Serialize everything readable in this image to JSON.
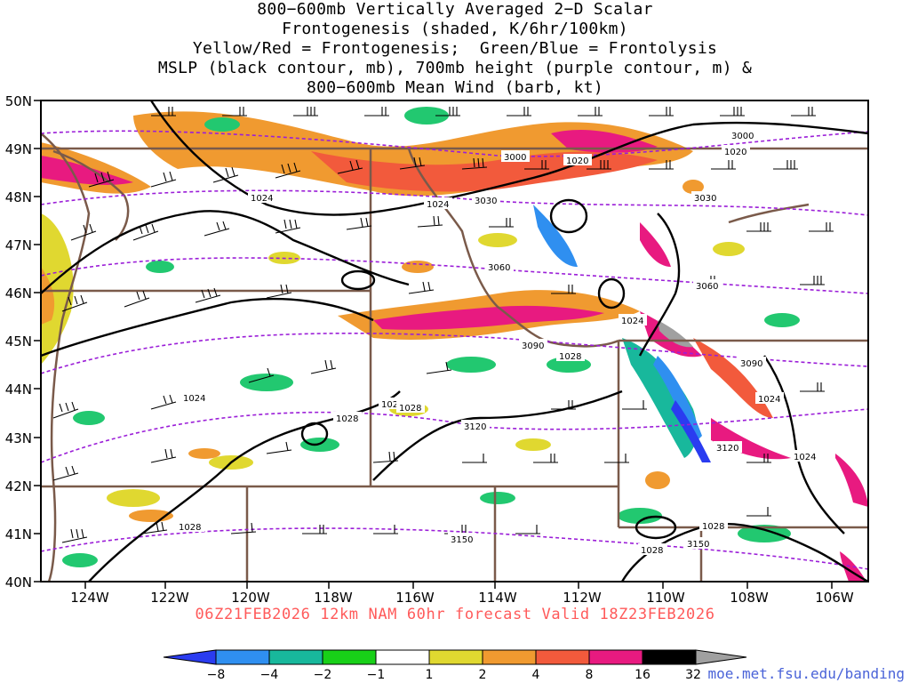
{
  "title_lines": [
    "800−600mb Vertically Averaged 2−D Scalar",
    "Frontogenesis (shaded, K/6hr/100km)",
    "Yellow/Red = Frontogenesis;  Green/Blue = Frontolysis",
    "MSLP (black contour, mb), 700mb height (purple contour, m) &",
    "800−600mb Mean Wind (barb, kt)"
  ],
  "valid_line": "06Z21FEB2026 12km NAM 60hr forecast Valid 18Z23FEB2026",
  "credit": "moe.met.fsu.edu/banding",
  "map": {
    "lon_labels": [
      "124W",
      "122W",
      "120W",
      "118W",
      "116W",
      "114W",
      "112W",
      "110W",
      "108W",
      "106W"
    ],
    "lat_labels": [
      "50N",
      "49N",
      "48N",
      "47N",
      "46N",
      "45N",
      "44N",
      "43N",
      "42N",
      "41N",
      "40N"
    ],
    "mslp_labels": [
      "1020",
      "1020",
      "1024",
      "1024",
      "1024",
      "1024",
      "1024",
      "1028",
      "1028",
      "1028",
      "1028",
      "1028",
      "1028",
      "1028",
      "1024"
    ],
    "height_labels": [
      "3000",
      "3000",
      "3030",
      "3030",
      "3060",
      "3060",
      "3090",
      "3090",
      "3120",
      "3120",
      "3150",
      "3150"
    ]
  },
  "colorbar": {
    "labels": [
      "−8",
      "−4",
      "−2",
      "−1",
      "1",
      "2",
      "4",
      "8",
      "16",
      "32"
    ],
    "colors": [
      "#2a3cf0",
      "#2f8ff0",
      "#18b89c",
      "#22c870",
      "#18d018",
      "#ffffff",
      "#e0d830",
      "#f09a30",
      "#f25a3c",
      "#e81a80",
      "#000000",
      "#a0a0a0"
    ]
  },
  "colors": {
    "state_borders": "#7a5a4a",
    "mslp": "#000000",
    "heights": "#9b1ed8",
    "valid_text": "#ff5a5a",
    "credit_text": "#4a63d8"
  }
}
